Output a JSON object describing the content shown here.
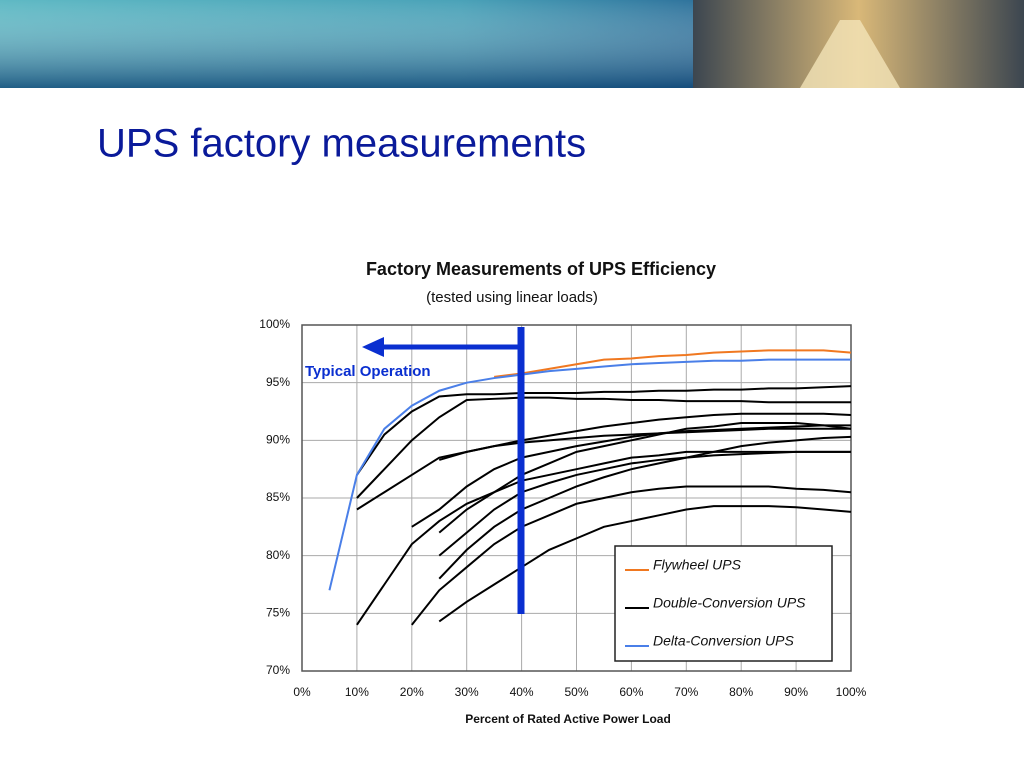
{
  "slide_title": "UPS factory measurements",
  "chart_data": {
    "type": "line",
    "title": "Factory Measurements of UPS Efficiency",
    "subtitle": "(tested using linear loads)",
    "x_label": "Percent of Rated Active Power Load",
    "annotation": "Typical Operation",
    "x": [
      5,
      10,
      15,
      20,
      25,
      30,
      35,
      40,
      45,
      50,
      55,
      60,
      65,
      70,
      75,
      80,
      85,
      90,
      95,
      100
    ],
    "xlim": [
      0,
      100
    ],
    "ylim": [
      70,
      100
    ],
    "xticks": [
      {
        "value": 0,
        "label": "0%"
      },
      {
        "value": 10,
        "label": "10%"
      },
      {
        "value": 20,
        "label": "20%"
      },
      {
        "value": 30,
        "label": "30%"
      },
      {
        "value": 40,
        "label": "40%"
      },
      {
        "value": 50,
        "label": "50%"
      },
      {
        "value": 60,
        "label": "60%"
      },
      {
        "value": 70,
        "label": "70%"
      },
      {
        "value": 80,
        "label": "80%"
      },
      {
        "value": 90,
        "label": "90%"
      },
      {
        "value": 100,
        "label": "100%"
      }
    ],
    "yticks": [
      {
        "value": 70,
        "label": "70%"
      },
      {
        "value": 75,
        "label": "75%"
      },
      {
        "value": 80,
        "label": "80%"
      },
      {
        "value": 85,
        "label": "85%"
      },
      {
        "value": 90,
        "label": "90%"
      },
      {
        "value": 95,
        "label": "95%"
      },
      {
        "value": 100,
        "label": "100%"
      }
    ],
    "grid": true,
    "legend": "lower right",
    "series": [
      {
        "name": "Flywheel UPS",
        "color": "#f07820",
        "lines": [
          [
            null,
            null,
            null,
            null,
            null,
            null,
            95.5,
            95.8,
            96.2,
            96.6,
            97,
            97.1,
            97.3,
            97.4,
            97.6,
            97.7,
            97.8,
            97.8,
            97.8,
            97.6
          ]
        ]
      },
      {
        "name": "Double-Conversion UPS",
        "color": "#000000",
        "lines": [
          [
            null,
            87,
            90.5,
            92.5,
            93.8,
            94,
            94,
            94.1,
            94.1,
            94.1,
            94.2,
            94.2,
            94.3,
            94.3,
            94.4,
            94.4,
            94.5,
            94.5,
            94.6,
            94.7
          ],
          [
            null,
            85,
            87.5,
            90,
            92,
            93.5,
            93.6,
            93.7,
            93.7,
            93.6,
            93.6,
            93.5,
            93.5,
            93.4,
            93.4,
            93.4,
            93.3,
            93.3,
            93.3,
            93.3
          ],
          [
            null,
            84,
            85.5,
            87,
            88.5,
            89,
            89.5,
            89.8,
            90,
            90.2,
            90.4,
            90.5,
            90.6,
            90.7,
            90.8,
            90.9,
            91,
            91,
            91,
            91
          ],
          [
            null,
            74,
            77.5,
            81,
            83,
            84.5,
            85.5,
            86.5,
            87,
            87.5,
            88,
            88.5,
            88.7,
            89,
            89,
            89,
            89,
            89,
            89,
            89
          ],
          [
            null,
            null,
            null,
            74,
            77,
            79,
            81,
            82.5,
            83.5,
            84.5,
            85,
            85.5,
            85.8,
            86,
            86,
            86,
            86,
            85.8,
            85.7,
            85.5
          ],
          [
            null,
            null,
            null,
            null,
            74.3,
            76,
            77.5,
            79,
            80.5,
            81.5,
            82.5,
            83,
            83.5,
            84,
            84.3,
            84.3,
            84.3,
            84.2,
            84,
            83.8
          ],
          [
            null,
            null,
            null,
            null,
            82,
            84,
            85.5,
            87,
            88,
            89,
            89.5,
            90,
            90.5,
            91,
            91.2,
            91.5,
            91.5,
            91.5,
            91.3,
            91
          ],
          [
            null,
            null,
            null,
            null,
            88.3,
            89,
            89.5,
            90,
            90.4,
            90.8,
            91.2,
            91.5,
            91.8,
            92,
            92.2,
            92.3,
            92.3,
            92.3,
            92.3,
            92.2
          ],
          [
            null,
            null,
            null,
            null,
            80,
            82,
            84,
            85.5,
            86.3,
            87,
            87.5,
            88,
            88.3,
            88.5,
            88.7,
            88.8,
            88.9,
            89,
            89,
            89
          ],
          [
            null,
            null,
            null,
            null,
            78,
            80.5,
            82.5,
            84,
            85,
            86,
            86.8,
            87.5,
            88,
            88.5,
            89,
            89.5,
            89.8,
            90,
            90.2,
            90.3
          ],
          [
            null,
            null,
            null,
            82.5,
            84,
            86,
            87.5,
            88.5,
            89,
            89.5,
            89.9,
            90.3,
            90.6,
            90.8,
            90.9,
            91,
            91.1,
            91.2,
            91.3,
            91.3
          ]
        ]
      },
      {
        "name": "Delta-Conversion UPS",
        "color": "#4a7fe8",
        "lines": [
          [
            77,
            87,
            91,
            93,
            94.3,
            95,
            95.4,
            95.7,
            96,
            96.2,
            96.4,
            96.6,
            96.7,
            96.8,
            96.9,
            96.9,
            97,
            97,
            97,
            97
          ]
        ]
      }
    ]
  }
}
